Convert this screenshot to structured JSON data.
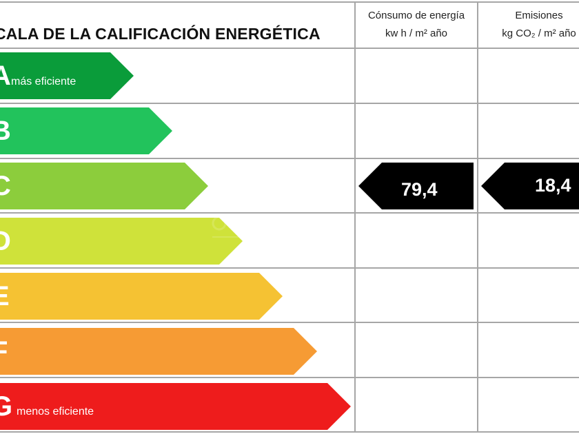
{
  "header": {
    "title": "CALA DE LA CALIFICACIÓN ENERGÉTICA",
    "energy_col": {
      "line1": "Cónsumo de energía",
      "line2": "kw h / m² año"
    },
    "emissions_col": {
      "line1": "Emisiones",
      "line2": "kg CO₂ / m² año"
    }
  },
  "scale": [
    {
      "letter": "A",
      "note": "más eficiente",
      "color": "#0a9c3a"
    },
    {
      "letter": "B",
      "note": "",
      "color": "#22c35c"
    },
    {
      "letter": "C",
      "note": "",
      "color": "#8ccd3c"
    },
    {
      "letter": "D",
      "note": "",
      "color": "#cfe23a"
    },
    {
      "letter": "E",
      "note": "",
      "color": "#f5c233"
    },
    {
      "letter": "F",
      "note": "",
      "color": "#f69b34"
    },
    {
      "letter": "G",
      "note": "menos eficiente",
      "color": "#ee1c1c"
    }
  ],
  "rating": {
    "class": "C",
    "energy_value": "79,4",
    "emissions_value": "18,4",
    "tag_color": "#000000"
  },
  "colors": {
    "grid": "#a6a6a6",
    "background": "#ffffff"
  }
}
